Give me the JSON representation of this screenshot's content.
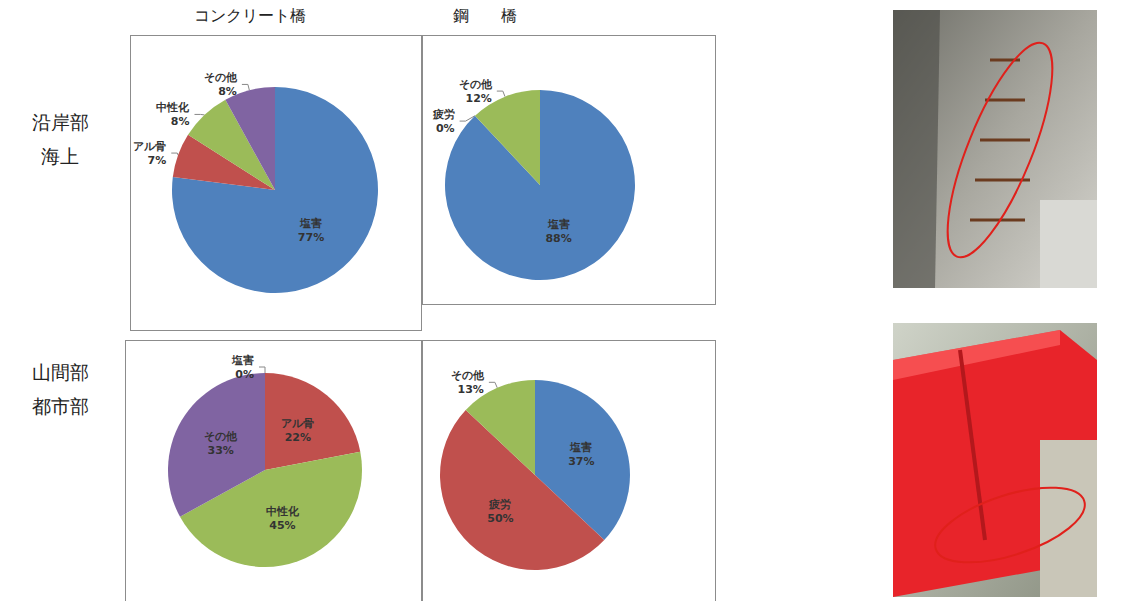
{
  "column_headers": [
    "コンクリート橋",
    "鋼　　橋"
  ],
  "row_headers": [
    [
      "沿岸部",
      "海上"
    ],
    [
      "山間部",
      "都市部"
    ]
  ],
  "chart_data": [
    {
      "type": "pie",
      "categories": [
        "塩害",
        "アル骨",
        "中性化",
        "その他"
      ],
      "values": [
        77,
        7,
        8,
        8
      ],
      "value_labels": [
        "77%",
        "7%",
        "8%",
        "8%"
      ],
      "colors": [
        "#4f81bd",
        "#c0504d",
        "#9bbb59",
        "#8064a2"
      ],
      "data_labels": true
    },
    {
      "type": "pie",
      "categories": [
        "塩害",
        "疲労",
        "その他"
      ],
      "values": [
        88,
        0,
        12
      ],
      "value_labels": [
        "88%",
        "0%",
        "12%"
      ],
      "colors": [
        "#4f81bd",
        "#c0504d",
        "#9bbb59"
      ],
      "data_labels": true
    },
    {
      "type": "pie",
      "categories": [
        "塩害",
        "アル骨",
        "中性化",
        "その他"
      ],
      "values": [
        0,
        22,
        45,
        33
      ],
      "value_labels": [
        "0%",
        "22%",
        "45%",
        "33%"
      ],
      "colors": [
        "#4f81bd",
        "#c0504d",
        "#9bbb59",
        "#8064a2"
      ],
      "data_labels": true
    },
    {
      "type": "pie",
      "categories": [
        "塩害",
        "疲労",
        "その他"
      ],
      "values": [
        37,
        50,
        13
      ],
      "value_labels": [
        "37%",
        "50%",
        "13%"
      ],
      "colors": [
        "#4f81bd",
        "#c0504d",
        "#9bbb59"
      ],
      "data_labels": true
    }
  ]
}
